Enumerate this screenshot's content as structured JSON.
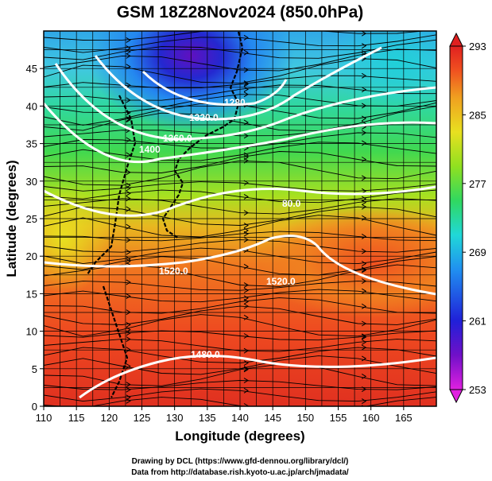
{
  "title": "GSM 18Z28Nov2024 (850.0hPa)",
  "xlabel": "Longitude (degrees)",
  "ylabel": "Latitude  (degrees)",
  "x_ticks": [
    "110",
    "115",
    "120",
    "125",
    "130",
    "135",
    "140",
    "145",
    "150",
    "155",
    "160",
    "165"
  ],
  "y_ticks": [
    "0",
    "5",
    "10",
    "15",
    "20",
    "25",
    "30",
    "35",
    "40",
    "45"
  ],
  "colorbar": {
    "ticks": [
      "293",
      "285",
      "277",
      "269",
      "261",
      "253"
    ],
    "min": 253,
    "max": 293,
    "colors": [
      "#e020e0",
      "#7010c8",
      "#2020d8",
      "#2090f0",
      "#20d8d8",
      "#30d860",
      "#90e020",
      "#e8e020",
      "#f0a020",
      "#f05020",
      "#e02020"
    ]
  },
  "contour_labels": [
    "1280",
    "1320.0",
    "1360.0",
    "1400",
    "80.0",
    "1520.0",
    "1520.0",
    "1480.0"
  ],
  "credits": {
    "line1": "Drawing by DCL (https://www.gfd-dennou.org/library/dcl/)",
    "line2": "Data from http://database.rish.kyoto-u.ac.jp/arch/jmadata/"
  },
  "chart_data": {
    "type": "heatmap",
    "title": "GSM 18Z28Nov2024 (850.0hPa)",
    "xlabel": "Longitude (degrees)",
    "ylabel": "Latitude  (degrees)",
    "xlim": [
      110,
      170
    ],
    "ylim": [
      0,
      50
    ],
    "zlim": [
      253,
      293
    ],
    "colorbar_ticks": [
      253,
      261,
      269,
      277,
      285,
      293
    ],
    "contour_levels": [
      1280,
      1320,
      1360,
      1400,
      1480,
      1520
    ],
    "fields": [
      "temperature (shaded)",
      "geopotential height (white contours)",
      "wind (streamlines)"
    ]
  }
}
